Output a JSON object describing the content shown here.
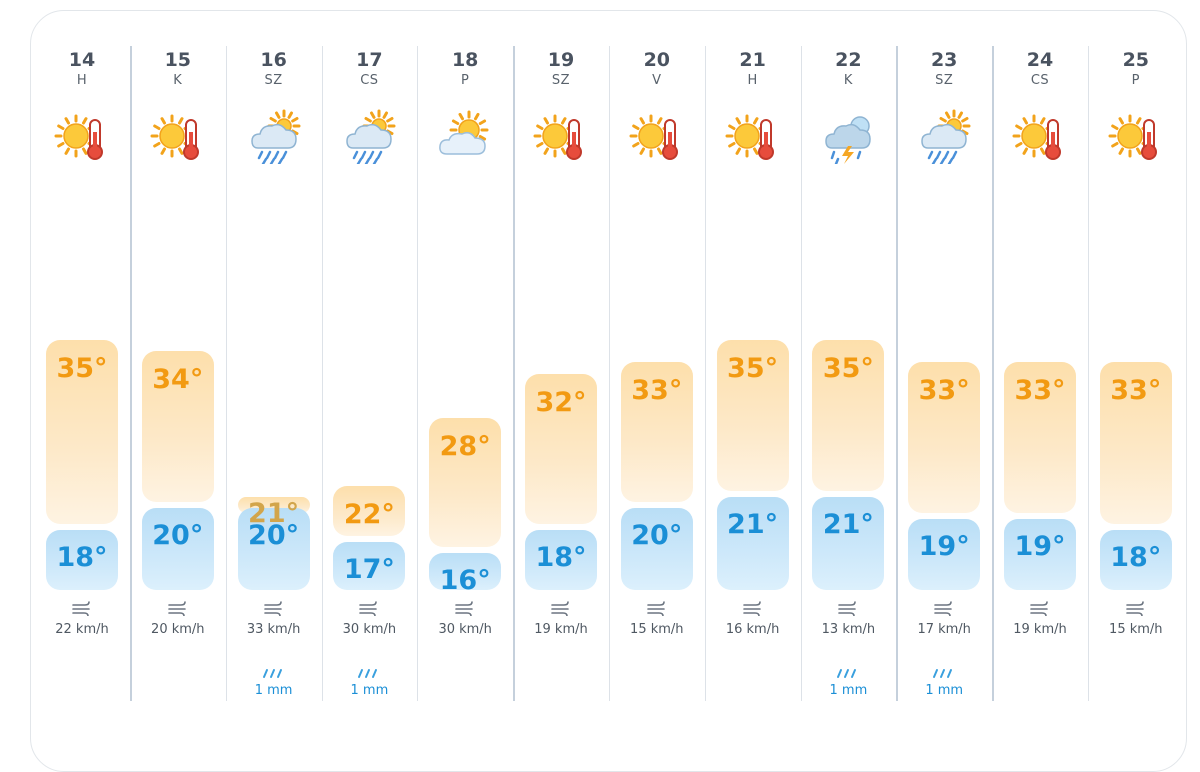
{
  "days": [
    {
      "day": "14",
      "weekday": "H",
      "icon": "sun-thermometer-icon",
      "high": "35°",
      "low": "18°",
      "high_value": 35,
      "low_value": 18,
      "wind": "22 km/h",
      "rain": ""
    },
    {
      "day": "15",
      "weekday": "K",
      "icon": "sun-thermometer-icon",
      "high": "34°",
      "low": "20°",
      "high_value": 34,
      "low_value": 20,
      "wind": "20 km/h",
      "rain": ""
    },
    {
      "day": "16",
      "weekday": "SZ",
      "icon": "rain-cloud-sun-icon",
      "high": "21°",
      "low": "20°",
      "high_value": 21,
      "low_value": 20,
      "wind": "33 km/h",
      "rain": "1 mm"
    },
    {
      "day": "17",
      "weekday": "CS",
      "icon": "rain-cloud-sun-icon",
      "high": "22°",
      "low": "17°",
      "high_value": 22,
      "low_value": 17,
      "wind": "30 km/h",
      "rain": "1 mm"
    },
    {
      "day": "18",
      "weekday": "P",
      "icon": "sun-behind-cloud-icon",
      "high": "28°",
      "low": "16°",
      "high_value": 28,
      "low_value": 16,
      "wind": "30 km/h",
      "rain": ""
    },
    {
      "day": "19",
      "weekday": "SZ",
      "icon": "sun-thermometer-icon",
      "high": "32°",
      "low": "18°",
      "high_value": 32,
      "low_value": 18,
      "wind": "19 km/h",
      "rain": ""
    },
    {
      "day": "20",
      "weekday": "V",
      "icon": "sun-thermometer-icon",
      "high": "33°",
      "low": "20°",
      "high_value": 33,
      "low_value": 20,
      "wind": "15 km/h",
      "rain": ""
    },
    {
      "day": "21",
      "weekday": "H",
      "icon": "sun-thermometer-icon",
      "high": "35°",
      "low": "21°",
      "high_value": 35,
      "low_value": 21,
      "wind": "16 km/h",
      "rain": ""
    },
    {
      "day": "22",
      "weekday": "K",
      "icon": "thunder-rain-cloud-icon",
      "high": "35°",
      "low": "21°",
      "high_value": 35,
      "low_value": 21,
      "wind": "13 km/h",
      "rain": "1 mm"
    },
    {
      "day": "23",
      "weekday": "SZ",
      "icon": "rain-cloud-sun-icon",
      "high": "33°",
      "low": "19°",
      "high_value": 33,
      "low_value": 19,
      "wind": "17 km/h",
      "rain": "1 mm"
    },
    {
      "day": "24",
      "weekday": "CS",
      "icon": "sun-thermometer-icon",
      "high": "33°",
      "low": "19°",
      "high_value": 33,
      "low_value": 19,
      "wind": "19 km/h",
      "rain": ""
    },
    {
      "day": "25",
      "weekday": "P",
      "icon": "sun-thermometer-icon",
      "high": "33°",
      "low": "18°",
      "high_value": 33,
      "low_value": 18,
      "wind": "15 km/h",
      "rain": ""
    }
  ],
  "colors": {
    "high_text": "#f29a12",
    "low_text": "#1b8fd6",
    "high_bar": "#fddfab",
    "low_bar": "#b9def6"
  }
}
